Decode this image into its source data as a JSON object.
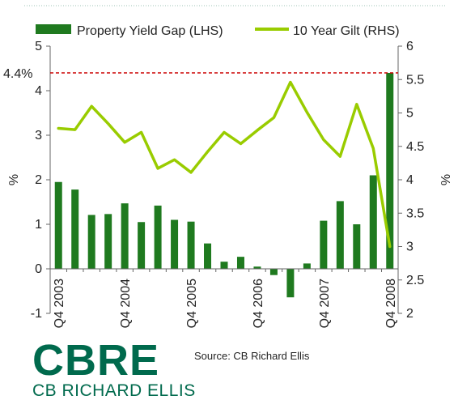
{
  "chart_data": {
    "type": "bar",
    "legend": [
      {
        "name": "Property Yield Gap (LHS)",
        "color": "#1f7a1f",
        "kind": "bar"
      },
      {
        "name": "10 Year Gilt (RHS)",
        "color": "#99cc00",
        "kind": "line"
      }
    ],
    "left_axis": {
      "label": "%",
      "min": -1,
      "max": 5,
      "ticks": [
        "-1",
        "0",
        "1",
        "2",
        "3",
        "4",
        "5"
      ]
    },
    "right_axis": {
      "label": "%",
      "min": 2,
      "max": 6,
      "ticks": [
        "2",
        "2.5",
        "3",
        "3.5",
        "4",
        "4.5",
        "5",
        "5.5",
        "6"
      ]
    },
    "x_tick_labels": [
      {
        "index": 0,
        "label": "Q4 2003"
      },
      {
        "index": 4,
        "label": "Q4 2004"
      },
      {
        "index": 8,
        "label": "Q4 2005"
      },
      {
        "index": 12,
        "label": "Q4 2006"
      },
      {
        "index": 16,
        "label": "Q4 2007"
      },
      {
        "index": 20,
        "label": "Q4 2008"
      }
    ],
    "series": [
      {
        "name": "Property Yield Gap (LHS)",
        "values": [
          1.95,
          1.78,
          1.21,
          1.23,
          1.47,
          1.05,
          1.42,
          1.1,
          1.06,
          0.57,
          0.16,
          0.27,
          0.05,
          -0.14,
          -0.64,
          0.12,
          1.08,
          1.52,
          1.0,
          2.1,
          4.4
        ]
      },
      {
        "name": "10 Year Gilt (RHS)",
        "values": [
          4.77,
          4.75,
          5.1,
          4.84,
          4.56,
          4.71,
          4.17,
          4.3,
          4.11,
          4.42,
          4.71,
          4.54,
          4.74,
          4.93,
          5.46,
          5.01,
          4.6,
          4.35,
          5.13,
          4.47,
          3.0
        ]
      }
    ],
    "reference_line": {
      "value": 4.4,
      "label": "4.4%",
      "color": "#cc0000"
    }
  },
  "footer": {
    "logo_main": "CBRE",
    "logo_sub": "CB RICHARD ELLIS",
    "logo_color": "#006a4d",
    "source": "Source: CB Richard Ellis"
  }
}
